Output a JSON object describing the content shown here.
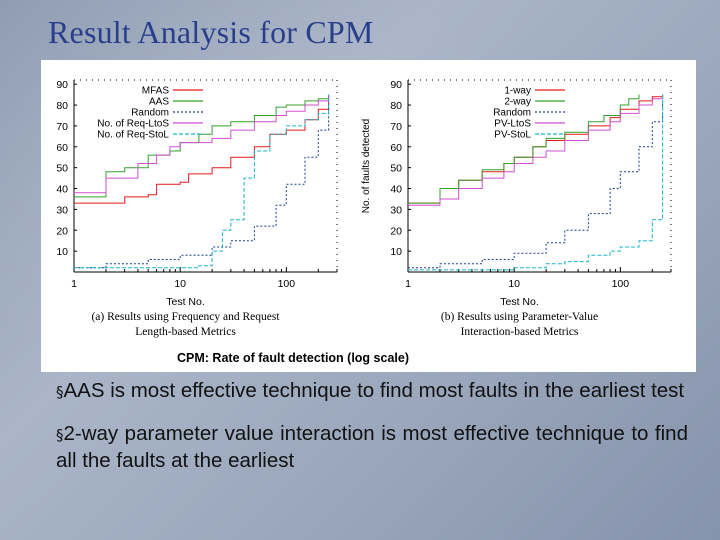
{
  "slide": {
    "title": "Result Analysis for CPM",
    "bullets": [
      {
        "mark": "§",
        "text": "AAS is most effective technique to find most faults in the earliest test"
      },
      {
        "mark": "§",
        "text": "2-way parameter value interaction is most effective technique to find all the faults at the earliest"
      }
    ]
  },
  "figure_caption": "CPM: Rate of fault detection (log scale)",
  "chart_data": [
    {
      "type": "line",
      "xscale": "log",
      "xlim": [
        1,
        300
      ],
      "ylim": [
        0,
        92
      ],
      "yticks": [
        10,
        20,
        30,
        40,
        50,
        60,
        70,
        80,
        90
      ],
      "xticks": [
        1,
        10,
        100
      ],
      "xlabel": "Test No.",
      "ylabel": "",
      "caption": [
        "(a) Results using Frequency and Request",
        "Length-based Metrics"
      ],
      "legend_position": "top-left",
      "series": [
        {
          "name": "MFAS",
          "color": "#e31a1c",
          "dash": "solid",
          "x": [
            1,
            2,
            3,
            5,
            6,
            10,
            12,
            20,
            30,
            50,
            70,
            100,
            150,
            200,
            250
          ],
          "y": [
            33,
            33,
            36,
            37,
            42,
            43,
            47,
            50,
            55,
            60,
            66,
            68,
            73,
            78,
            85
          ]
        },
        {
          "name": "AAS",
          "color": "#33a02c",
          "dash": "solid",
          "x": [
            1,
            2,
            3,
            5,
            8,
            10,
            15,
            20,
            30,
            50,
            80,
            100,
            150,
            200,
            250
          ],
          "y": [
            36,
            48,
            50,
            56,
            58,
            62,
            66,
            70,
            72,
            75,
            79,
            80,
            82,
            83,
            85
          ]
        },
        {
          "name": "Random",
          "color": "#1f3c88",
          "dash": "2,2",
          "x": [
            1,
            2,
            5,
            10,
            20,
            30,
            50,
            80,
            100,
            150,
            200,
            250
          ],
          "y": [
            2,
            4,
            6,
            8,
            12,
            15,
            22,
            32,
            42,
            55,
            68,
            85
          ]
        },
        {
          "name": "No. of Req-LtoS",
          "color": "#d04fd0",
          "dash": "solid",
          "x": [
            1,
            2,
            4,
            6,
            8,
            10,
            20,
            30,
            50,
            80,
            100,
            150,
            200,
            250
          ],
          "y": [
            38,
            45,
            52,
            56,
            60,
            62,
            64,
            68,
            72,
            75,
            77,
            80,
            82,
            85
          ]
        },
        {
          "name": "No. of Req-StoL",
          "color": "#19b4c8",
          "dash": "4,2",
          "x": [
            1,
            3,
            5,
            10,
            15,
            20,
            25,
            30,
            40,
            50,
            70,
            100,
            150,
            200,
            250
          ],
          "y": [
            2,
            2,
            2,
            2,
            3,
            10,
            20,
            25,
            45,
            58,
            66,
            70,
            73,
            76,
            85
          ]
        }
      ]
    },
    {
      "type": "line",
      "xscale": "log",
      "xlim": [
        1,
        300
      ],
      "ylim": [
        0,
        92
      ],
      "yticks": [
        10,
        20,
        30,
        40,
        50,
        60,
        70,
        80,
        90
      ],
      "xticks": [
        1,
        10,
        100
      ],
      "xlabel": "Test No.",
      "ylabel": "No. of faults detected",
      "caption": [
        "(b) Results using Parameter-Value",
        "Interaction-based Metrics"
      ],
      "legend_position": "top-right",
      "series": [
        {
          "name": "1-way",
          "color": "#e31a1c",
          "dash": "solid",
          "x": [
            1,
            2,
            3,
            5,
            8,
            10,
            15,
            20,
            30,
            50,
            80,
            100,
            150,
            200,
            250
          ],
          "y": [
            33,
            40,
            44,
            48,
            52,
            55,
            60,
            63,
            66,
            70,
            74,
            78,
            82,
            84,
            85
          ]
        },
        {
          "name": "2-way",
          "color": "#33a02c",
          "dash": "solid",
          "x": [
            1,
            2,
            3,
            5,
            8,
            10,
            15,
            20,
            30,
            50,
            70,
            100,
            120,
            150
          ],
          "y": [
            33,
            40,
            44,
            49,
            52,
            55,
            60,
            64,
            67,
            72,
            75,
            80,
            83,
            85
          ]
        },
        {
          "name": "Random",
          "color": "#1f3c88",
          "dash": "2,2",
          "x": [
            1,
            2,
            5,
            10,
            20,
            30,
            50,
            80,
            100,
            150,
            200,
            250
          ],
          "y": [
            2,
            4,
            6,
            9,
            14,
            20,
            28,
            40,
            48,
            60,
            72,
            85
          ]
        },
        {
          "name": "PV-LtoS",
          "color": "#d04fd0",
          "dash": "solid",
          "x": [
            1,
            2,
            3,
            5,
            8,
            10,
            15,
            20,
            30,
            50,
            80,
            100,
            150,
            200,
            250
          ],
          "y": [
            32,
            35,
            40,
            45,
            48,
            52,
            55,
            58,
            63,
            68,
            72,
            76,
            80,
            83,
            85
          ]
        },
        {
          "name": "PV-StoL",
          "color": "#19b4c8",
          "dash": "4,2",
          "x": [
            1,
            5,
            10,
            20,
            30,
            50,
            80,
            100,
            150,
            200,
            250
          ],
          "y": [
            1,
            1,
            2,
            4,
            5,
            8,
            10,
            12,
            15,
            25,
            85
          ]
        }
      ]
    }
  ]
}
